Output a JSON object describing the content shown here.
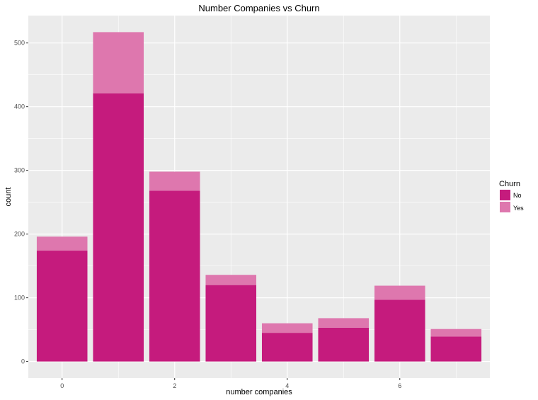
{
  "chart_data": {
    "type": "bar",
    "stacked": true,
    "title": "Number Companies vs Churn",
    "xlabel": "number companies",
    "ylabel": "count",
    "categories": [
      0,
      1,
      2,
      3,
      4,
      5,
      6,
      7
    ],
    "series": [
      {
        "name": "No",
        "values": [
          174,
          421,
          268,
          120,
          45,
          53,
          97,
          39
        ],
        "color": "#c51b7d"
      },
      {
        "name": "Yes",
        "values": [
          22,
          96,
          30,
          16,
          15,
          15,
          22,
          12
        ],
        "color": "#de77ae"
      }
    ],
    "x_ticks": [
      0,
      2,
      4,
      6
    ],
    "y_ticks": [
      0,
      100,
      200,
      300,
      400,
      500
    ],
    "xlim": [
      -0.6,
      7.6
    ],
    "ylim": [
      -26,
      543
    ],
    "grid": true,
    "panel_background": "#ebebeb",
    "grid_color": "#ffffff",
    "legend": {
      "title": "Churn",
      "position": "right"
    }
  }
}
